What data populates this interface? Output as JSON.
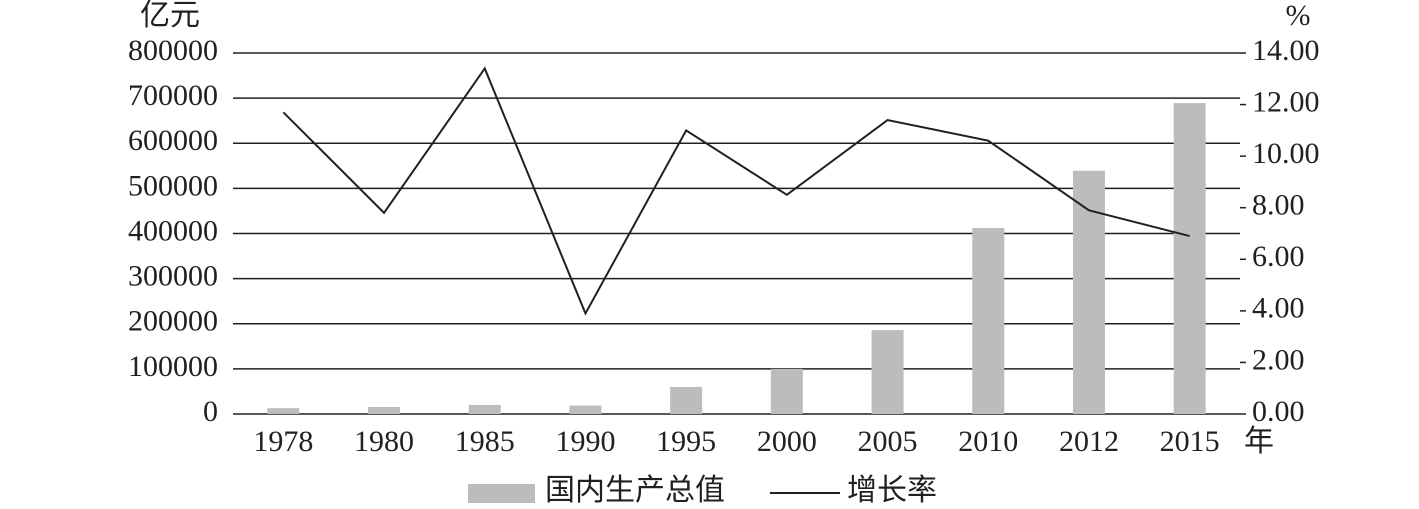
{
  "chart_data": {
    "type": "bar",
    "y_unit": "亿元",
    "y2_unit": "%",
    "x_unit": "年",
    "categories": [
      "1978",
      "1980",
      "1985",
      "1990",
      "1995",
      "2000",
      "2005",
      "2010",
      "2012",
      "2015"
    ],
    "series": [
      {
        "name": "国内生产总值",
        "type": "bar",
        "color": "#bdbcbc",
        "values": [
          13000,
          15500,
          20000,
          18700,
          60000,
          100000,
          186000,
          412000,
          539000,
          689000
        ]
      },
      {
        "name": "增长率",
        "type": "line",
        "axis": "y2",
        "color": "#231f20",
        "values": [
          11.7,
          7.8,
          13.4,
          3.9,
          11.0,
          8.5,
          11.4,
          10.6,
          7.9,
          6.9
        ]
      }
    ],
    "ylim": [
      0,
      800000
    ],
    "yticks": [
      0,
      100000,
      200000,
      300000,
      400000,
      500000,
      600000,
      700000,
      800000
    ],
    "y2lim": [
      0,
      14
    ],
    "y2ticks": [
      {
        "value": 0,
        "label": "0.00"
      },
      {
        "value": 2,
        "label": "2.00"
      },
      {
        "value": 4,
        "label": "4.00"
      },
      {
        "value": 6,
        "label": "6.00"
      },
      {
        "value": 8,
        "label": "8.00"
      },
      {
        "value": 10,
        "label": "10.00"
      },
      {
        "value": 12,
        "label": "12.00"
      },
      {
        "value": 14,
        "label": "14.00"
      }
    ],
    "grid": true,
    "legend": "bottom"
  }
}
